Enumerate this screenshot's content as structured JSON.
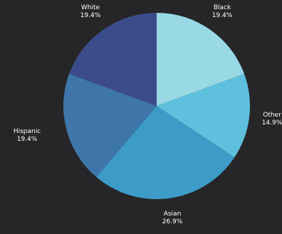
{
  "chart_data": {
    "type": "pie",
    "slices": [
      {
        "label": "Black",
        "pct_text": "19.4%",
        "value": 19.4,
        "color": "#98d9e4"
      },
      {
        "label": "Other",
        "pct_text": "14.9%",
        "value": 14.9,
        "color": "#5ec0dc"
      },
      {
        "label": "Asian",
        "pct_text": "26.9%",
        "value": 26.9,
        "color": "#3d9cc7"
      },
      {
        "label": "Hispanic",
        "pct_text": "19.4%",
        "value": 19.4,
        "color": "#3e76a9"
      },
      {
        "label": "White",
        "pct_text": "19.4%",
        "value": 19.4,
        "color": "#3c4c8a"
      }
    ],
    "start": "12 o'clock",
    "direction": "clockwise",
    "legend": "none"
  },
  "colors": {
    "background": "#262628",
    "label_text": "#ffffff"
  }
}
